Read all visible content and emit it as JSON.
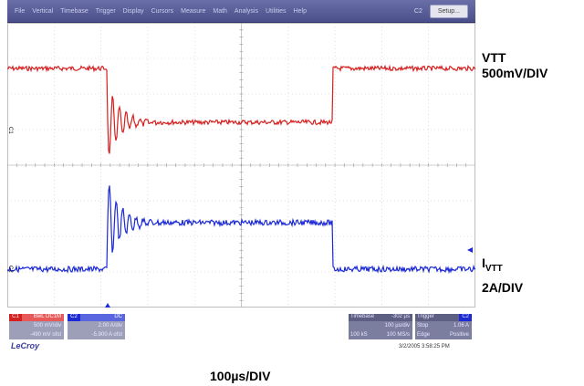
{
  "menu": {
    "items": [
      "File",
      "Vertical",
      "Timebase",
      "Trigger",
      "Display",
      "Cursors",
      "Measure",
      "Math",
      "Analysis",
      "Utilities",
      "Help"
    ],
    "channel_indicator": "C2",
    "setup_label": "Setup..."
  },
  "traces": {
    "c1": {
      "color": "#d62020",
      "marker": "C1"
    },
    "c2": {
      "color": "#1c2ad6",
      "marker": "C2"
    }
  },
  "labels": {
    "vtt_name": "VTT",
    "vtt_scale": "500mV/DIV",
    "ivtt_main": "I",
    "ivtt_sub": "VTT",
    "ivtt_scale": "2A/DIV",
    "timebase_div": "100µs/DIV"
  },
  "panels": {
    "c1": {
      "name": "C1",
      "coupling": "BwL DC1M",
      "scale": "500 mV/div",
      "offset": "-490 mV ofst"
    },
    "c2": {
      "name": "C2",
      "coupling": "DC",
      "scale": "2.00 A/div",
      "offset": "-5.900 A ofst"
    },
    "timebase": {
      "title": "Timebase",
      "delay": "-302 µs",
      "per_div": "100 µs/div",
      "samples": "100 kS",
      "rate": "100 MS/s"
    },
    "trigger": {
      "title": "Trigger",
      "source": "C2",
      "mode": "Stop",
      "level": "1.06 A",
      "type": "Edge",
      "slope": "Positive"
    }
  },
  "brand": "LeCroy",
  "timestamp": "3/2/2005 3:58:25 PM"
}
